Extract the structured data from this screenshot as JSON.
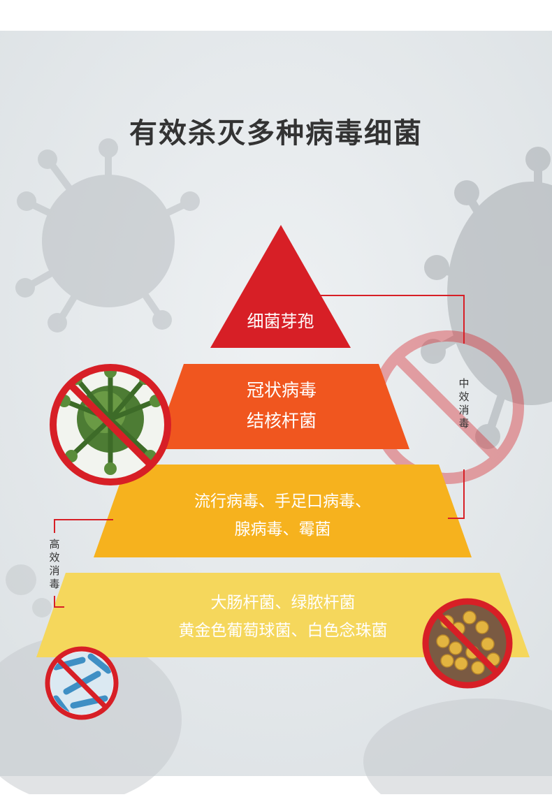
{
  "title": "有效杀灭多种病毒细菌",
  "tiers": [
    {
      "lines": [
        "细菌芽孢"
      ],
      "color": "#d71f26"
    },
    {
      "lines": [
        "冠状病毒",
        "结核杆菌"
      ],
      "color": "#f0561f"
    },
    {
      "lines": [
        "流行病毒、手足口病毒、",
        "腺病毒、霉菌"
      ],
      "color": "#f6b21e"
    },
    {
      "lines": [
        "大肠杆菌、绿脓杆菌",
        "黄金色葡萄球菌、白色念珠菌"
      ],
      "color": "#f5d75c"
    }
  ],
  "brackets": {
    "medium": "中效消毒",
    "high": "高效消毒"
  },
  "colors": {
    "background": "#e8ebed",
    "accent_red": "#d71f26",
    "title": "#333333"
  },
  "icons": [
    "no-symbol-watermark-icon",
    "green-virus-no-icon",
    "blue-bacteria-no-icon",
    "yellow-bacteria-no-icon",
    "background-virus-icon"
  ]
}
